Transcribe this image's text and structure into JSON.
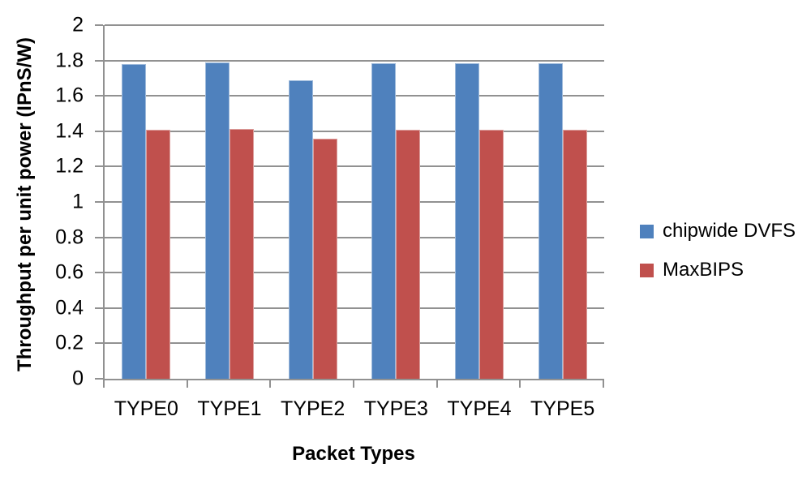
{
  "chart_data": {
    "type": "bar",
    "title": "",
    "categories": [
      "TYPE0",
      "TYPE1",
      "TYPE2",
      "TYPE3",
      "TYPE4",
      "TYPE5"
    ],
    "series": [
      {
        "name": "chipwide DVFS",
        "color": "#4F81BD",
        "values": [
          1.78,
          1.79,
          1.69,
          1.785,
          1.785,
          1.785
        ]
      },
      {
        "name": "MaxBIPS",
        "color": "#C0504D",
        "values": [
          1.41,
          1.415,
          1.36,
          1.41,
          1.41,
          1.41
        ]
      }
    ],
    "xlabel": "Packet Types",
    "ylabel": "Throughput per unit power (IPnS/W)",
    "ylim": [
      0,
      2
    ],
    "ytick_step": 0.2,
    "ytick_labels": [
      "0",
      "0.2",
      "0.4",
      "0.6",
      "0.8",
      "1",
      "1.2",
      "1.4",
      "1.6",
      "1.8",
      "2"
    ],
    "grid": "horizontal",
    "legend_position": "right",
    "colors": {
      "gridline": "#919191",
      "axis": "#919191",
      "text": "#000000",
      "background": "#FFFFFF"
    }
  }
}
